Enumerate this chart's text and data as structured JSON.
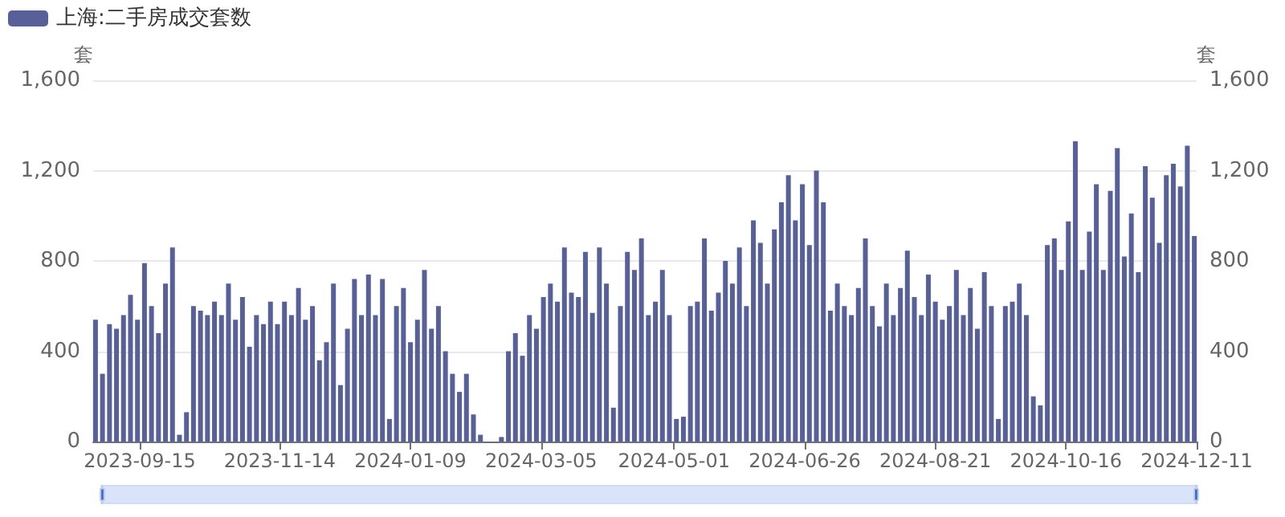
{
  "chart_data": {
    "type": "bar",
    "ylabel": "套",
    "y2label": "套",
    "legend": "top left",
    "grid": "y",
    "xlim": [
      "2023-08-26",
      "2024-12-11"
    ],
    "xticks": [
      "2023-09-15",
      "2023-11-14",
      "2024-01-09",
      "2024-03-05",
      "2024-05-01",
      "2024-06-26",
      "2024-08-21",
      "2024-10-16",
      "2024-12-11"
    ],
    "ylim": [
      0,
      1600
    ],
    "yticks": [
      0,
      400,
      800,
      {
        "value": 1200,
        "label": "1,200"
      },
      {
        "value": 1600,
        "label": "1,600"
      }
    ],
    "y2lim": [
      0,
      1600
    ],
    "y2ticks": [
      0,
      400,
      800,
      {
        "value": 1200,
        "label": "1,200"
      },
      {
        "value": 1600,
        "label": "1,600"
      }
    ],
    "x": [
      "2023-08-27",
      "2023-08-30",
      "2023-09-02",
      "2023-09-05",
      "2023-09-08",
      "2023-09-11",
      "2023-09-14",
      "2023-09-17",
      "2023-09-20",
      "2023-09-23",
      "2023-09-26",
      "2023-09-29",
      "2023-10-02",
      "2023-10-05",
      "2023-10-08",
      "2023-10-11",
      "2023-10-14",
      "2023-10-17",
      "2023-10-20",
      "2023-10-23",
      "2023-10-26",
      "2023-10-29",
      "2023-11-01",
      "2023-11-04",
      "2023-11-07",
      "2023-11-10",
      "2023-11-13",
      "2023-11-16",
      "2023-11-19",
      "2023-11-22",
      "2023-11-25",
      "2023-11-28",
      "2023-12-01",
      "2023-12-04",
      "2023-12-07",
      "2023-12-10",
      "2023-12-13",
      "2023-12-16",
      "2023-12-19",
      "2023-12-22",
      "2023-12-25",
      "2023-12-28",
      "2023-12-31",
      "2024-01-03",
      "2024-01-06",
      "2024-01-09",
      "2024-01-12",
      "2024-01-15",
      "2024-01-18",
      "2024-01-21",
      "2024-01-24",
      "2024-01-27",
      "2024-01-30",
      "2024-02-02",
      "2024-02-05",
      "2024-02-08",
      "2024-02-11",
      "2024-02-14",
      "2024-02-17",
      "2024-02-20",
      "2024-02-23",
      "2024-02-26",
      "2024-02-29",
      "2024-03-03",
      "2024-03-06",
      "2024-03-09",
      "2024-03-12",
      "2024-03-15",
      "2024-03-18",
      "2024-03-21",
      "2024-03-24",
      "2024-03-27",
      "2024-03-30",
      "2024-04-02",
      "2024-04-05",
      "2024-04-08",
      "2024-04-11",
      "2024-04-14",
      "2024-04-17",
      "2024-04-20",
      "2024-04-23",
      "2024-04-26",
      "2024-04-29",
      "2024-05-02",
      "2024-05-05",
      "2024-05-08",
      "2024-05-11",
      "2024-05-14",
      "2024-05-17",
      "2024-05-20",
      "2024-05-23",
      "2024-05-26",
      "2024-05-29",
      "2024-06-01",
      "2024-06-04",
      "2024-06-07",
      "2024-06-10",
      "2024-06-13",
      "2024-06-16",
      "2024-06-19",
      "2024-06-22",
      "2024-06-25",
      "2024-06-28",
      "2024-07-01",
      "2024-07-04",
      "2024-07-07",
      "2024-07-10",
      "2024-07-13",
      "2024-07-16",
      "2024-07-19",
      "2024-07-22",
      "2024-07-25",
      "2024-07-28",
      "2024-07-31",
      "2024-08-03",
      "2024-08-06",
      "2024-08-09",
      "2024-08-12",
      "2024-08-15",
      "2024-08-18",
      "2024-08-21",
      "2024-08-24",
      "2024-08-27",
      "2024-08-30",
      "2024-09-02",
      "2024-09-05",
      "2024-09-08",
      "2024-09-11",
      "2024-09-14",
      "2024-09-17",
      "2024-09-20",
      "2024-09-23",
      "2024-09-26",
      "2024-09-29",
      "2024-10-02",
      "2024-10-05",
      "2024-10-08",
      "2024-10-11",
      "2024-10-14",
      "2024-10-17",
      "2024-10-20",
      "2024-10-23",
      "2024-10-26",
      "2024-10-29",
      "2024-11-01",
      "2024-11-04",
      "2024-11-07",
      "2024-11-10",
      "2024-11-13",
      "2024-11-16",
      "2024-11-19",
      "2024-11-22",
      "2024-11-25",
      "2024-11-28",
      "2024-12-01",
      "2024-12-04",
      "2024-12-07",
      "2024-12-10"
    ],
    "series": [
      {
        "name": "上海:二手房成交套数",
        "color": "#58609a",
        "values": [
          540,
          300,
          520,
          500,
          560,
          650,
          540,
          790,
          600,
          480,
          700,
          860,
          30,
          130,
          600,
          580,
          560,
          620,
          560,
          700,
          540,
          640,
          420,
          560,
          520,
          620,
          520,
          620,
          560,
          680,
          540,
          600,
          360,
          440,
          700,
          250,
          500,
          720,
          560,
          740,
          560,
          720,
          100,
          600,
          680,
          440,
          540,
          760,
          500,
          600,
          400,
          300,
          220,
          300,
          120,
          30,
          0,
          0,
          20,
          400,
          480,
          380,
          560,
          500,
          640,
          700,
          620,
          860,
          660,
          640,
          840,
          570,
          860,
          700,
          150,
          600,
          840,
          760,
          900,
          560,
          620,
          760,
          560,
          100,
          110,
          600,
          620,
          900,
          580,
          660,
          800,
          700,
          860,
          600,
          980,
          880,
          700,
          940,
          1060,
          1180,
          980,
          1140,
          870,
          1200,
          1060,
          580,
          700,
          600,
          560,
          680,
          900,
          600,
          510,
          700,
          560,
          680,
          845,
          640,
          560,
          740,
          620,
          540,
          600,
          760,
          560,
          680,
          500,
          750,
          600,
          100,
          600,
          620,
          700,
          560,
          200,
          160,
          870,
          900,
          760,
          975,
          1330,
          760,
          930,
          1140,
          760,
          1110,
          1300,
          820,
          1010,
          750,
          1220,
          1080,
          880,
          1180,
          1230,
          1130,
          1310,
          910
        ]
      }
    ]
  }
}
